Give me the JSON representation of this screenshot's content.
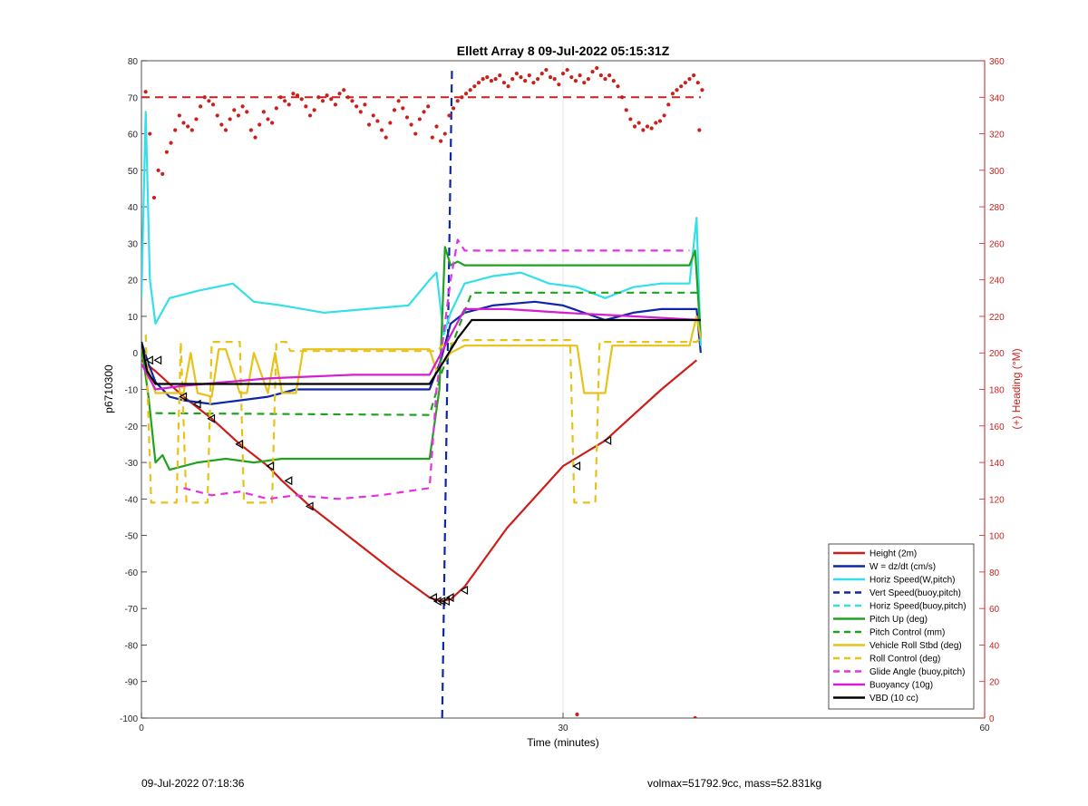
{
  "chart_data": {
    "type": "line",
    "title": "Ellett Array 8 09-Jul-2022 05:15:31Z",
    "xlabel": "Time (minutes)",
    "ylabel": "p6710300",
    "y2label": "(+) Heading (°M)",
    "xlim": [
      0,
      60
    ],
    "ylim": [
      -100,
      80
    ],
    "y2lim": [
      0,
      360
    ],
    "xticks": [
      "0",
      "30",
      "60"
    ],
    "yticks": [
      "80",
      "70",
      "60",
      "50",
      "40",
      "30",
      "20",
      "10",
      "0",
      "-10",
      "-20",
      "-30",
      "-40",
      "-50",
      "-60",
      "-70",
      "-80",
      "-90",
      "-100"
    ],
    "y2ticks": [
      "360",
      "340",
      "320",
      "300",
      "280",
      "260",
      "240",
      "220",
      "200",
      "180",
      "160",
      "140",
      "120",
      "100",
      "80",
      "60",
      "40",
      "20",
      "0"
    ],
    "grid": "x only",
    "legend_position": "bottom-right",
    "vertical_line_x": 21.4,
    "heading_reference_deg": 340,
    "series": [
      {
        "name": "Height (2m)",
        "color": "#cc1f1a",
        "style": "solid",
        "x": [
          0,
          1,
          3,
          5,
          7,
          9,
          10,
          12,
          15,
          18,
          20.5,
          21.3,
          22,
          23,
          26,
          30,
          33,
          35,
          37,
          39.5
        ],
        "y": [
          -2,
          -5,
          -12,
          -18,
          -25,
          -31,
          -35,
          -42,
          -51,
          -60,
          -67,
          -68,
          -67.5,
          -64,
          -48,
          -31,
          -24,
          -17,
          -10,
          -2
        ]
      },
      {
        "name": "W = dz/dt (cm/s)",
        "color": "#1026a8",
        "style": "solid",
        "x": [
          0,
          0.5,
          1,
          2,
          3,
          5,
          7,
          9,
          11,
          14,
          17,
          19,
          20.5,
          21.3,
          22,
          23,
          25,
          28,
          30,
          33,
          35,
          37,
          39.5,
          39.8
        ],
        "y": [
          3,
          -3,
          -8,
          -12,
          -13,
          -14,
          -13,
          -12,
          -10,
          -10,
          -10,
          -10,
          -10,
          -2,
          8,
          11,
          13,
          14,
          13,
          9,
          11,
          12,
          12,
          0
        ]
      },
      {
        "name": "Horiz Speed(W,pitch)",
        "color": "#33e0e8",
        "style": "solid",
        "x": [
          0,
          0.3,
          0.6,
          1,
          2,
          4,
          6.5,
          8,
          10,
          13,
          16,
          19,
          20.5,
          21,
          21.5,
          22,
          23,
          25,
          27,
          29,
          31,
          33,
          35,
          37,
          39,
          39.5,
          39.8
        ],
        "y": [
          15,
          66,
          20,
          8,
          15,
          17,
          19,
          14,
          13,
          11,
          12,
          13,
          20,
          22,
          5,
          11,
          19,
          21,
          22,
          19,
          18,
          15,
          18,
          19,
          19,
          37,
          2
        ]
      },
      {
        "name": "Vert Speed(buoy,pitch)",
        "color": "#1026a8",
        "style": "dash",
        "x": [],
        "y": []
      },
      {
        "name": "Horiz Speed(buoy,pitch)",
        "color": "#33e0e8",
        "style": "dash",
        "x": [],
        "y": []
      },
      {
        "name": "Pitch Up (deg)",
        "color": "#1fa31f",
        "style": "solid",
        "x": [
          0,
          0.5,
          1,
          1.5,
          2,
          4,
          6,
          8,
          10,
          12,
          15,
          18,
          20.5,
          21.2,
          21.6,
          22,
          22.5,
          23,
          25,
          28,
          30,
          33,
          35,
          37,
          39,
          39.4,
          39.8
        ],
        "y": [
          2,
          -12,
          -30,
          -28,
          -32,
          -30,
          -29,
          -30,
          -29,
          -29,
          -29,
          -29,
          -29,
          -10,
          29,
          24,
          25,
          24,
          24,
          24,
          24,
          24,
          24,
          24,
          24,
          28,
          4
        ]
      },
      {
        "name": "Pitch Control (mm)",
        "color": "#1fa31f",
        "style": "dash",
        "x": [
          1,
          20.5,
          21.4,
          23.5,
          39.8
        ],
        "y": [
          -16.5,
          -17,
          -5,
          16.5,
          16.5
        ]
      },
      {
        "name": "Vehicle Roll Stbd (deg)",
        "color": "#e8c21a",
        "style": "solid",
        "x": [
          0,
          0.5,
          1,
          2,
          3,
          3.5,
          4,
          5,
          5.5,
          6,
          7,
          7.5,
          8,
          9,
          9.5,
          10,
          11,
          11.5,
          12,
          15,
          18,
          20.5,
          21,
          22,
          23,
          25,
          28,
          30,
          31,
          31.5,
          33,
          33.5,
          35,
          37,
          39,
          39.5,
          39.8
        ],
        "y": [
          2,
          -5,
          -11,
          -11,
          -11,
          0,
          -11,
          -12,
          1,
          1,
          -11,
          -11,
          0,
          -11,
          0,
          -11,
          -11,
          1,
          1,
          1,
          1,
          1,
          -5,
          0,
          2,
          2,
          2,
          2,
          2,
          -11,
          -11,
          2,
          2,
          2,
          2,
          10,
          4
        ]
      },
      {
        "name": "Roll Control (deg)",
        "color": "#e8c21a",
        "style": "dash",
        "x": [
          0.3,
          0.7,
          2.5,
          2.8,
          3.2,
          4.7,
          5,
          7,
          7.3,
          9.3,
          9.6,
          10.3,
          10.6,
          14,
          18,
          21,
          21.4,
          23,
          30.5,
          30.8,
          32.3,
          32.6,
          35,
          39.5,
          39.8
        ],
        "y": [
          5,
          -41,
          -41,
          3,
          -41,
          -41,
          3,
          3,
          -41,
          -41,
          3,
          3,
          0.5,
          0.5,
          0.5,
          0.5,
          2,
          3.5,
          3.5,
          -41,
          -41,
          3,
          3,
          3,
          4
        ]
      },
      {
        "name": "Glide Angle (buoy,pitch)",
        "color": "#e233e0",
        "style": "dash",
        "x": [
          3,
          5,
          7,
          9,
          11,
          14,
          17,
          20.5,
          21,
          22,
          22.5,
          23,
          26,
          30,
          35,
          39
        ],
        "y": [
          -37,
          -39,
          -38,
          -40,
          -39,
          -40,
          -39,
          -37,
          -10,
          20,
          31,
          28,
          28,
          28,
          28,
          28
        ]
      },
      {
        "name": "Buoyancy (10g)",
        "color": "#d21fd2",
        "style": "solid",
        "x": [
          0,
          1,
          3,
          6,
          9,
          12,
          15,
          18,
          20.5,
          23,
          26,
          30,
          35,
          39.8
        ],
        "y": [
          -3,
          -10,
          -9,
          -8,
          -7,
          -6.5,
          -6,
          -6,
          -6,
          12,
          12,
          11,
          10,
          9
        ]
      },
      {
        "name": "VBD (10 cc)",
        "color": "#000000",
        "style": "solid",
        "x": [
          0,
          0.4,
          1,
          2,
          5,
          10,
          15,
          20.5,
          21.4,
          22.5,
          23.5,
          30,
          35,
          39.8
        ],
        "y": [
          3,
          -5,
          -8.5,
          -8.5,
          -8.5,
          -8.5,
          -8.5,
          -8.5,
          -3,
          4,
          9,
          9,
          9,
          9
        ]
      }
    ],
    "heading_points": {
      "axis": "right",
      "color": "#cc1f1a",
      "x": [
        0.3,
        0.6,
        0.9,
        1.2,
        1.5,
        1.8,
        2.1,
        2.4,
        2.7,
        3.0,
        3.3,
        3.6,
        3.9,
        4.2,
        4.5,
        4.8,
        5.1,
        5.4,
        5.7,
        6.0,
        6.3,
        6.6,
        6.9,
        7.2,
        7.5,
        7.8,
        8.1,
        8.4,
        8.7,
        9.0,
        9.3,
        9.6,
        9.9,
        10.2,
        10.5,
        10.8,
        11.1,
        11.4,
        11.7,
        12.0,
        12.3,
        12.6,
        12.9,
        13.2,
        13.5,
        13.8,
        14.1,
        14.4,
        14.7,
        15.0,
        15.3,
        15.6,
        15.9,
        16.2,
        16.5,
        16.8,
        17.1,
        17.4,
        17.7,
        18.0,
        18.3,
        18.6,
        18.9,
        19.2,
        19.5,
        19.8,
        20.1,
        20.4,
        20.7,
        21.0,
        21.3,
        21.6,
        21.9,
        22.2,
        22.5,
        22.8,
        23.1,
        23.4,
        23.7,
        24.0,
        24.3,
        24.6,
        24.9,
        25.2,
        25.5,
        25.8,
        26.1,
        26.4,
        26.7,
        27.0,
        27.3,
        27.6,
        27.9,
        28.2,
        28.5,
        28.8,
        29.1,
        29.4,
        29.7,
        30.0,
        30.3,
        30.6,
        30.9,
        31.2,
        31.5,
        31.8,
        32.1,
        32.4,
        32.7,
        33.0,
        33.3,
        33.6,
        33.9,
        34.2,
        34.5,
        34.8,
        35.1,
        35.4,
        35.7,
        36.0,
        36.3,
        36.6,
        36.9,
        37.2,
        37.5,
        37.8,
        38.1,
        38.4,
        38.7,
        39.0,
        39.3,
        39.6,
        39.9
      ],
      "y": [
        343,
        320,
        285,
        300,
        298,
        310,
        315,
        322,
        330,
        326,
        324,
        322,
        328,
        335,
        340,
        338,
        336,
        330,
        325,
        322,
        328,
        333,
        330,
        335,
        332,
        322,
        318,
        325,
        332,
        328,
        326,
        334,
        340,
        338,
        336,
        342,
        341,
        339,
        335,
        330,
        333,
        340,
        338,
        341,
        339,
        336,
        342,
        344,
        340,
        338,
        335,
        332,
        336,
        325,
        330,
        327,
        322,
        318,
        326,
        333,
        338,
        334,
        329,
        325,
        320,
        328,
        332,
        335,
        318,
        324,
        316,
        320,
        330,
        334,
        338,
        340,
        342,
        344,
        346,
        348,
        350,
        351,
        349,
        350,
        352,
        348,
        346,
        350,
        353,
        351,
        349,
        352,
        348,
        350,
        353,
        355,
        351,
        350,
        347,
        353,
        355,
        351,
        349,
        352,
        348,
        350,
        354,
        356,
        352,
        350,
        352,
        349,
        346,
        340,
        333,
        328,
        324,
        326,
        322,
        324,
        323,
        326,
        327,
        330,
        336,
        342,
        344,
        346,
        348,
        350,
        352,
        348,
        344
      ]
    },
    "heading_stray_points": {
      "x": [
        31.0,
        39.4,
        39.7
      ],
      "y": [
        2,
        0,
        322
      ]
    },
    "triangle_markers": {
      "color": "#000000",
      "x": [
        0.6,
        1.2,
        3,
        4,
        5,
        7,
        9.2,
        10.5,
        12,
        20.8,
        21.1,
        21.4,
        21.7,
        22,
        23,
        31,
        33.2
      ],
      "y": [
        -2,
        -2,
        -12,
        -14,
        -18,
        -25,
        -31,
        -35,
        -42,
        -67,
        -68,
        -68,
        -68,
        -67,
        -65,
        -31,
        -24
      ]
    }
  },
  "footer": {
    "left": "09-Jul-2022 07:18:36",
    "right": "volmax=51792.9cc, mass=52.831kg"
  }
}
